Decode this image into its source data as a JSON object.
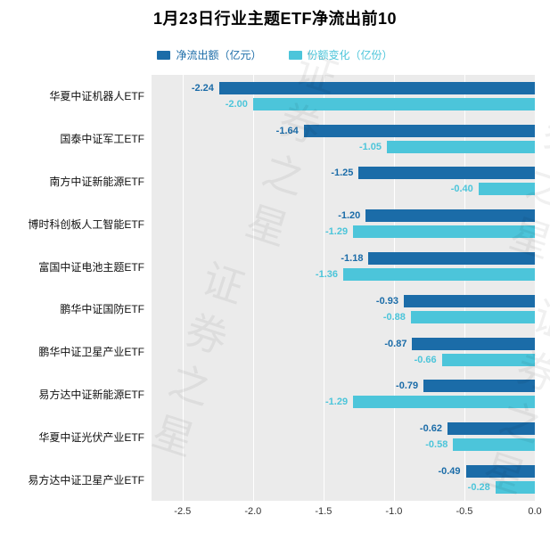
{
  "title": "1月23日行业主题ETF净流出前10",
  "watermark": "证券之星",
  "chart_data": {
    "type": "bar",
    "orientation": "horizontal",
    "title": "1月23日行业主题ETF净流出前10",
    "categories": [
      "华夏中证机器人ETF",
      "国泰中证军工ETF",
      "南方中证新能源ETF",
      "博时科创板人工智能ETF",
      "富国中证电池主题ETF",
      "鹏华中证国防ETF",
      "鹏华中证卫星产业ETF",
      "易方达中证新能源ETF",
      "华夏中证光伏产业ETF",
      "易方达中证卫星产业ETF"
    ],
    "series": [
      {
        "name": "净流出额（亿元）",
        "color": "#1b6ca8",
        "values": [
          -2.24,
          -1.64,
          -1.25,
          -1.2,
          -1.18,
          -0.93,
          -0.87,
          -0.79,
          -0.62,
          -0.49
        ]
      },
      {
        "name": "份额变化（亿份）",
        "color": "#4cc5da",
        "values": [
          -2.0,
          -1.05,
          -0.4,
          -1.29,
          -1.36,
          -0.88,
          -0.66,
          -1.29,
          -0.58,
          -0.28
        ]
      }
    ],
    "xlim": [
      -2.72,
      0
    ],
    "x_ticks": [
      -2.5,
      -2.0,
      -1.5,
      -1.0,
      -0.5,
      0.0
    ],
    "x_tick_labels": [
      "-2.5",
      "-2.0",
      "-1.5",
      "-1.0",
      "-0.5",
      "0.0"
    ],
    "grid": true,
    "legend_position": "top",
    "plot_background": "#ebebeb"
  }
}
